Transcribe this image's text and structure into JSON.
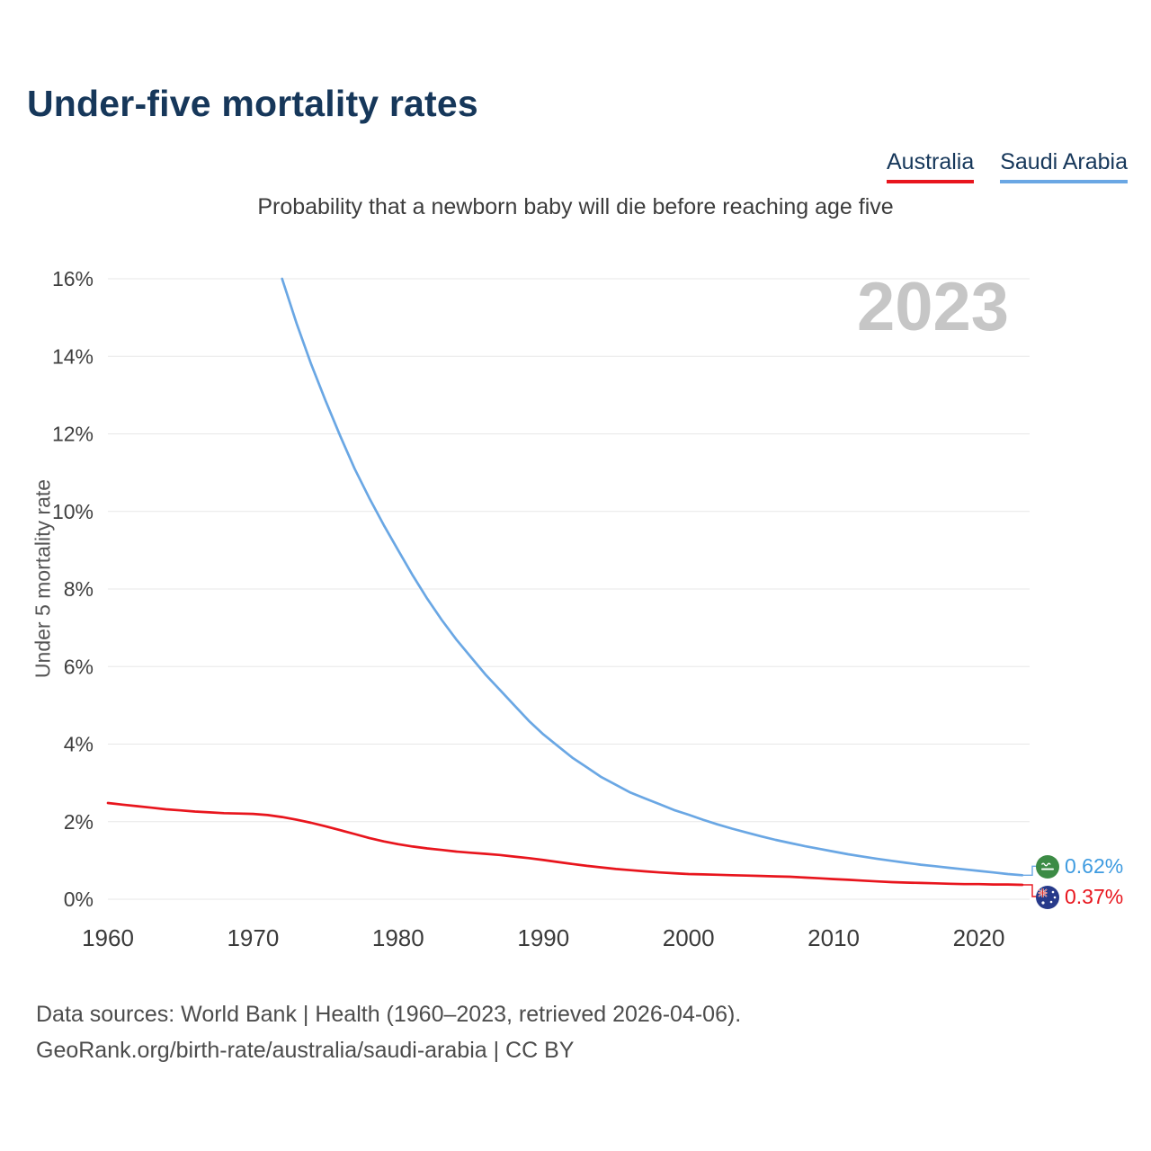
{
  "page": {
    "title": "Under-five mortality rates",
    "subtitle": "Probability that a newborn baby will die before reaching age five",
    "watermark_year": "2023",
    "footer_line1": "Data sources: World Bank | Health (1960–2023, retrieved 2026-04-06).",
    "footer_line2": "GeoRank.org/birth-rate/australia/saudi-arabia | CC BY"
  },
  "legend": [
    {
      "label": "Australia",
      "color": "#e8151d"
    },
    {
      "label": "Saudi Arabia",
      "color": "#6aa7e4"
    }
  ],
  "end_labels": [
    {
      "series": "Saudi Arabia",
      "value_label": "0.62%",
      "color": "#3e9be0",
      "flag": "saudi-arabia-flag"
    },
    {
      "series": "Australia",
      "value_label": "0.37%",
      "color": "#e8151d",
      "flag": "australia-flag"
    }
  ],
  "chart_data": {
    "type": "line",
    "title": "Under-five mortality rates",
    "subtitle": "Probability that a newborn baby will die before reaching age five",
    "ylabel": "Under 5 mortality rate",
    "xlabel": "",
    "ylim": [
      0,
      16
    ],
    "xlim": [
      1960,
      2023.5
    ],
    "yticks": [
      0,
      2,
      4,
      6,
      8,
      10,
      12,
      14,
      16
    ],
    "ytick_suffix": "%",
    "xticks": [
      1960,
      1970,
      1980,
      1990,
      2000,
      2010,
      2020
    ],
    "grid": "horizontal",
    "legend_position": "top-right",
    "series": [
      {
        "name": "Australia",
        "color": "#e8151d",
        "end_label": "0.37%",
        "x": [
          1960,
          1961,
          1962,
          1963,
          1964,
          1965,
          1966,
          1967,
          1968,
          1969,
          1970,
          1971,
          1972,
          1973,
          1974,
          1975,
          1976,
          1977,
          1978,
          1979,
          1980,
          1981,
          1982,
          1983,
          1984,
          1985,
          1986,
          1987,
          1988,
          1989,
          1990,
          1991,
          1992,
          1993,
          1994,
          1995,
          1996,
          1997,
          1998,
          1999,
          2000,
          2001,
          2002,
          2003,
          2004,
          2005,
          2006,
          2007,
          2008,
          2009,
          2010,
          2011,
          2012,
          2013,
          2014,
          2015,
          2016,
          2017,
          2018,
          2019,
          2020,
          2021,
          2022,
          2023
        ],
        "y": [
          2.48,
          2.44,
          2.4,
          2.36,
          2.32,
          2.29,
          2.26,
          2.24,
          2.22,
          2.21,
          2.2,
          2.17,
          2.12,
          2.05,
          1.97,
          1.88,
          1.78,
          1.68,
          1.58,
          1.49,
          1.42,
          1.36,
          1.31,
          1.27,
          1.23,
          1.2,
          1.17,
          1.14,
          1.1,
          1.06,
          1.01,
          0.96,
          0.91,
          0.86,
          0.82,
          0.78,
          0.75,
          0.72,
          0.69,
          0.67,
          0.65,
          0.64,
          0.63,
          0.62,
          0.61,
          0.6,
          0.59,
          0.58,
          0.56,
          0.54,
          0.52,
          0.5,
          0.48,
          0.46,
          0.44,
          0.43,
          0.42,
          0.41,
          0.4,
          0.39,
          0.39,
          0.38,
          0.38,
          0.37
        ]
      },
      {
        "name": "Saudi Arabia",
        "color": "#6aa7e4",
        "end_label": "0.62%",
        "x": [
          1972,
          1973,
          1974,
          1975,
          1976,
          1977,
          1978,
          1979,
          1980,
          1981,
          1982,
          1983,
          1984,
          1985,
          1986,
          1987,
          1988,
          1989,
          1990,
          1991,
          1992,
          1993,
          1994,
          1995,
          1996,
          1997,
          1998,
          1999,
          2000,
          2001,
          2002,
          2003,
          2004,
          2005,
          2006,
          2007,
          2008,
          2009,
          2010,
          2011,
          2012,
          2013,
          2014,
          2015,
          2016,
          2017,
          2018,
          2019,
          2020,
          2021,
          2022,
          2023
        ],
        "y": [
          16.0,
          14.85,
          13.8,
          12.85,
          11.95,
          11.1,
          10.35,
          9.65,
          9.0,
          8.35,
          7.75,
          7.2,
          6.7,
          6.25,
          5.8,
          5.4,
          5.0,
          4.6,
          4.25,
          3.95,
          3.65,
          3.4,
          3.15,
          2.95,
          2.75,
          2.6,
          2.45,
          2.3,
          2.18,
          2.05,
          1.93,
          1.82,
          1.72,
          1.62,
          1.53,
          1.45,
          1.37,
          1.3,
          1.23,
          1.16,
          1.1,
          1.04,
          0.99,
          0.94,
          0.89,
          0.85,
          0.81,
          0.77,
          0.73,
          0.69,
          0.65,
          0.62
        ]
      }
    ]
  }
}
